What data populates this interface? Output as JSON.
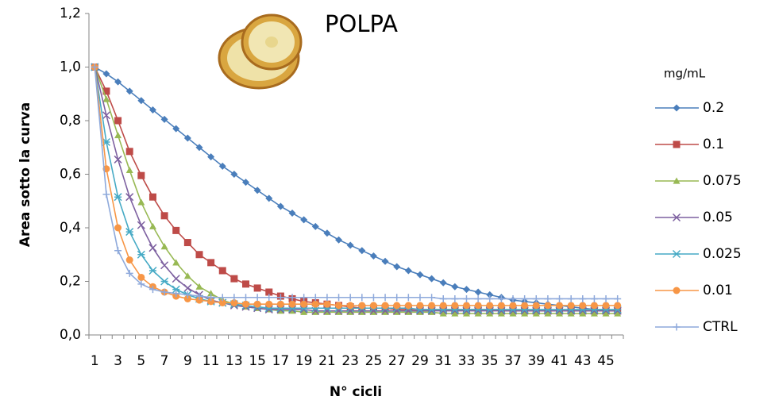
{
  "chart_data": {
    "type": "line",
    "title": "POLPA",
    "x_label": "N° cicli",
    "y_label": "Area sotto la curva",
    "legend_title": "mg/mL",
    "legend_position": "right",
    "grid": false,
    "categories": [
      "1",
      null,
      "3",
      null,
      "5",
      null,
      "7",
      null,
      "9",
      null,
      "11",
      null,
      "13",
      null,
      "15",
      null,
      "17",
      null,
      "19",
      null,
      "21",
      null,
      "23",
      null,
      "25",
      null,
      "27",
      null,
      "29",
      null,
      "31",
      null,
      "33",
      null,
      "35",
      null,
      "37",
      null,
      "39",
      null,
      "41",
      null,
      "43",
      null,
      "45",
      null
    ],
    "ylim": [
      0,
      1.2
    ],
    "yticks": [
      {
        "value": 0,
        "label": "0,0"
      },
      {
        "value": 0.2,
        "label": "0,2"
      },
      {
        "value": 0.4,
        "label": "0,4"
      },
      {
        "value": 0.6,
        "label": "0,6"
      },
      {
        "value": 0.8,
        "label": "0,8"
      },
      {
        "value": 1.0,
        "label": "1,0"
      },
      {
        "value": 1.2,
        "label": "1,2"
      }
    ],
    "series": [
      {
        "name": "0.2",
        "color": "#4a7ebb",
        "marker": "diamond",
        "values": [
          1.0,
          0.975,
          0.945,
          0.91,
          0.875,
          0.84,
          0.805,
          0.77,
          0.735,
          0.7,
          0.665,
          0.63,
          0.6,
          0.57,
          0.54,
          0.51,
          0.48,
          0.455,
          0.43,
          0.405,
          0.38,
          0.355,
          0.335,
          0.315,
          0.295,
          0.275,
          0.255,
          0.24,
          0.225,
          0.21,
          0.195,
          0.18,
          0.17,
          0.16,
          0.15,
          0.14,
          0.13,
          0.125,
          0.12,
          0.115,
          0.11,
          0.105,
          0.1,
          0.095,
          0.09,
          0.09
        ]
      },
      {
        "name": "0.1",
        "color": "#be4b48",
        "marker": "square",
        "values": [
          1.0,
          0.91,
          0.8,
          0.685,
          0.595,
          0.515,
          0.445,
          0.39,
          0.345,
          0.3,
          0.27,
          0.24,
          0.21,
          0.19,
          0.175,
          0.16,
          0.145,
          0.135,
          0.125,
          0.12,
          0.115,
          0.11,
          0.105,
          0.1,
          0.1,
          0.1,
          0.095,
          0.095,
          0.095,
          0.095,
          0.095,
          0.095,
          0.095,
          0.095,
          0.095,
          0.09,
          0.09,
          0.09,
          0.09,
          0.09,
          0.09,
          0.09,
          0.09,
          0.09,
          0.09,
          0.09
        ]
      },
      {
        "name": "0.075",
        "color": "#98b954",
        "marker": "triangle",
        "values": [
          1.0,
          0.88,
          0.745,
          0.615,
          0.495,
          0.405,
          0.33,
          0.27,
          0.22,
          0.18,
          0.155,
          0.13,
          0.115,
          0.105,
          0.1,
          0.095,
          0.09,
          0.09,
          0.085,
          0.085,
          0.085,
          0.085,
          0.085,
          0.085,
          0.085,
          0.085,
          0.085,
          0.085,
          0.085,
          0.085,
          0.08,
          0.08,
          0.08,
          0.08,
          0.08,
          0.08,
          0.08,
          0.08,
          0.08,
          0.08,
          0.08,
          0.08,
          0.08,
          0.08,
          0.08,
          0.08
        ]
      },
      {
        "name": "0.05",
        "color": "#7d60a0",
        "marker": "x",
        "values": [
          1.0,
          0.82,
          0.655,
          0.515,
          0.41,
          0.325,
          0.26,
          0.21,
          0.175,
          0.15,
          0.13,
          0.12,
          0.11,
          0.105,
          0.1,
          0.095,
          0.095,
          0.095,
          0.095,
          0.09,
          0.09,
          0.09,
          0.09,
          0.09,
          0.09,
          0.09,
          0.09,
          0.09,
          0.09,
          0.09,
          0.09,
          0.09,
          0.09,
          0.09,
          0.09,
          0.09,
          0.09,
          0.09,
          0.09,
          0.09,
          0.09,
          0.09,
          0.09,
          0.09,
          0.09,
          0.09
        ]
      },
      {
        "name": "0.025",
        "color": "#46aac5",
        "marker": "star",
        "values": [
          1.0,
          0.72,
          0.515,
          0.385,
          0.3,
          0.24,
          0.2,
          0.17,
          0.15,
          0.135,
          0.125,
          0.12,
          0.115,
          0.11,
          0.105,
          0.1,
          0.1,
          0.1,
          0.1,
          0.1,
          0.1,
          0.1,
          0.1,
          0.1,
          0.1,
          0.1,
          0.1,
          0.1,
          0.095,
          0.095,
          0.095,
          0.095,
          0.095,
          0.095,
          0.095,
          0.095,
          0.095,
          0.095,
          0.095,
          0.095,
          0.095,
          0.095,
          0.095,
          0.095,
          0.095,
          0.095
        ]
      },
      {
        "name": "0.01",
        "color": "#f79646",
        "marker": "circle",
        "values": [
          1.0,
          0.62,
          0.4,
          0.28,
          0.215,
          0.18,
          0.16,
          0.145,
          0.135,
          0.13,
          0.125,
          0.12,
          0.12,
          0.115,
          0.115,
          0.115,
          0.115,
          0.115,
          0.115,
          0.115,
          0.115,
          0.11,
          0.11,
          0.11,
          0.11,
          0.11,
          0.11,
          0.11,
          0.11,
          0.11,
          0.11,
          0.11,
          0.11,
          0.11,
          0.11,
          0.11,
          0.11,
          0.11,
          0.11,
          0.11,
          0.11,
          0.11,
          0.11,
          0.11,
          0.11,
          0.11
        ]
      },
      {
        "name": "CTRL",
        "color": "#8ea9db",
        "marker": "plus",
        "values": [
          1.0,
          0.525,
          0.315,
          0.23,
          0.19,
          0.17,
          0.16,
          0.155,
          0.15,
          0.145,
          0.14,
          0.14,
          0.14,
          0.14,
          0.14,
          0.14,
          0.14,
          0.14,
          0.14,
          0.14,
          0.14,
          0.14,
          0.14,
          0.14,
          0.14,
          0.14,
          0.14,
          0.14,
          0.14,
          0.14,
          0.135,
          0.135,
          0.135,
          0.135,
          0.135,
          0.135,
          0.135,
          0.135,
          0.135,
          0.135,
          0.135,
          0.135,
          0.135,
          0.135,
          0.135,
          0.135
        ]
      }
    ]
  }
}
